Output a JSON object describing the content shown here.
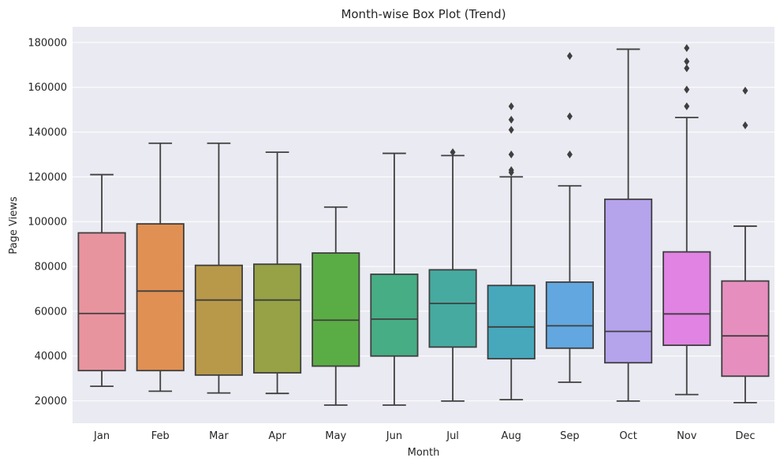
{
  "chart_data": {
    "type": "box",
    "title": "Month-wise Box Plot (Trend)",
    "xlabel": "Month",
    "ylabel": "Page Views",
    "ylim": [
      10000,
      187000
    ],
    "yticks": [
      20000,
      40000,
      60000,
      80000,
      100000,
      120000,
      140000,
      160000,
      180000
    ],
    "grid": true,
    "colors": {
      "background": "#eaeaf2",
      "grid": "#ffffff",
      "line": "#3f3f3f"
    },
    "categories": [
      "Jan",
      "Feb",
      "Mar",
      "Apr",
      "May",
      "Jun",
      "Jul",
      "Aug",
      "Sep",
      "Oct",
      "Nov",
      "Dec"
    ],
    "boxes": [
      {
        "month": "Jan",
        "whisker_low": 26500,
        "q1": 33500,
        "median": 59000,
        "q3": 95000,
        "whisker_high": 121000,
        "outliers": [],
        "color": "#e8949f"
      },
      {
        "month": "Feb",
        "whisker_low": 24300,
        "q1": 33500,
        "median": 69000,
        "q3": 99000,
        "whisker_high": 135000,
        "outliers": [],
        "color": "#e19054"
      },
      {
        "month": "Mar",
        "whisker_low": 23500,
        "q1": 31500,
        "median": 65000,
        "q3": 80500,
        "whisker_high": 135000,
        "outliers": [],
        "color": "#b8994a"
      },
      {
        "month": "Apr",
        "whisker_low": 23300,
        "q1": 32500,
        "median": 65000,
        "q3": 81000,
        "whisker_high": 131000,
        "outliers": [],
        "color": "#96a245"
      },
      {
        "month": "May",
        "whisker_low": 18100,
        "q1": 35500,
        "median": 56000,
        "q3": 86000,
        "whisker_high": 106500,
        "outliers": [],
        "color": "#5aad45"
      },
      {
        "month": "Jun",
        "whisker_low": 18100,
        "q1": 40000,
        "median": 56500,
        "q3": 76500,
        "whisker_high": 130500,
        "outliers": [],
        "color": "#47ad85"
      },
      {
        "month": "Jul",
        "whisker_low": 19900,
        "q1": 44000,
        "median": 63500,
        "q3": 78500,
        "whisker_high": 129500,
        "outliers": [
          131000
        ],
        "color": "#46aaa0"
      },
      {
        "month": "Aug",
        "whisker_low": 20500,
        "q1": 38800,
        "median": 53000,
        "q3": 71500,
        "whisker_high": 120000,
        "outliers": [
          122000,
          123000,
          130000,
          141000,
          145500,
          151500
        ],
        "color": "#47a8bb"
      },
      {
        "month": "Sep",
        "whisker_low": 28300,
        "q1": 43500,
        "median": 53500,
        "q3": 73000,
        "whisker_high": 116000,
        "outliers": [
          130000,
          147000,
          174000
        ],
        "color": "#62a7df"
      },
      {
        "month": "Oct",
        "whisker_low": 19900,
        "q1": 37000,
        "median": 51000,
        "q3": 110000,
        "whisker_high": 177000,
        "outliers": [],
        "color": "#b5a3ec"
      },
      {
        "month": "Nov",
        "whisker_low": 22800,
        "q1": 44800,
        "median": 58800,
        "q3": 86500,
        "whisker_high": 146500,
        "outliers": [
          151500,
          159000,
          168500,
          171500,
          177500
        ],
        "color": "#e083e2"
      },
      {
        "month": "Dec",
        "whisker_low": 19200,
        "q1": 31000,
        "median": 49000,
        "q3": 73500,
        "whisker_high": 98000,
        "outliers": [
          143000,
          158500
        ],
        "color": "#e68fbf"
      }
    ]
  }
}
